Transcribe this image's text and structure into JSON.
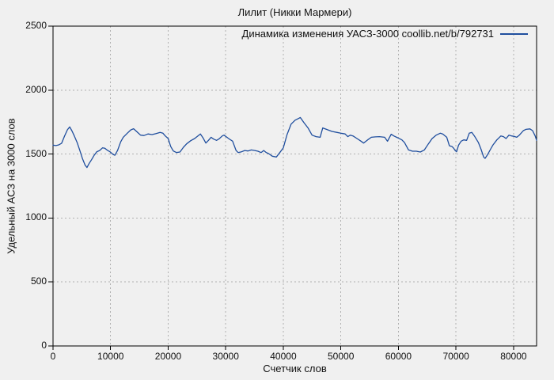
{
  "title": "Лилит (Никки Мармери)",
  "legend": {
    "label": "Динамика изменения УАСЗ-3000 coollib.net/b/792731"
  },
  "axes": {
    "xlabel": "Счетчик слов",
    "ylabel": "Удельный АСЗ на 3000 слов",
    "x_ticks": [
      0,
      10000,
      20000,
      30000,
      40000,
      50000,
      60000,
      70000,
      80000
    ],
    "y_ticks": [
      0,
      500,
      1000,
      1500,
      2000,
      2500
    ]
  },
  "colors": {
    "background": "#f0f0f0",
    "axis": "#000000",
    "grid": "#b0b0b0",
    "text": "#111111",
    "line": "#1f4e9e"
  },
  "chart_data": {
    "type": "line",
    "title": "Лилит (Никки Мармери)",
    "xlabel": "Счетчик слов",
    "ylabel": "Удельный АСЗ на 3000 слов",
    "xlim": [
      0,
      84000
    ],
    "ylim": [
      0,
      2500
    ],
    "grid": true,
    "legend_position": "top-right",
    "series": [
      {
        "name": "Динамика изменения УАСЗ-3000 coollib.net/b/792731",
        "color": "#1f4e9e",
        "points": [
          [
            0,
            1570
          ],
          [
            500,
            1566
          ],
          [
            1000,
            1572
          ],
          [
            1500,
            1585
          ],
          [
            2000,
            1640
          ],
          [
            2500,
            1690
          ],
          [
            2900,
            1712
          ],
          [
            3300,
            1680
          ],
          [
            3700,
            1642
          ],
          [
            4200,
            1590
          ],
          [
            4650,
            1530
          ],
          [
            5100,
            1466
          ],
          [
            5550,
            1415
          ],
          [
            5900,
            1395
          ],
          [
            6250,
            1425
          ],
          [
            6700,
            1456
          ],
          [
            7150,
            1491
          ],
          [
            7600,
            1518
          ],
          [
            8100,
            1528
          ],
          [
            8600,
            1549
          ],
          [
            9000,
            1545
          ],
          [
            9500,
            1528
          ],
          [
            9900,
            1518
          ],
          [
            10450,
            1497
          ],
          [
            10750,
            1491
          ],
          [
            11200,
            1528
          ],
          [
            11750,
            1595
          ],
          [
            12200,
            1631
          ],
          [
            12900,
            1663
          ],
          [
            13500,
            1689
          ],
          [
            14000,
            1698
          ],
          [
            14600,
            1673
          ],
          [
            15200,
            1648
          ],
          [
            15800,
            1645
          ],
          [
            16500,
            1657
          ],
          [
            17200,
            1652
          ],
          [
            17900,
            1660
          ],
          [
            18600,
            1669
          ],
          [
            19100,
            1663
          ],
          [
            19500,
            1642
          ],
          [
            20000,
            1621
          ],
          [
            20450,
            1559
          ],
          [
            20900,
            1524
          ],
          [
            21450,
            1512
          ],
          [
            22050,
            1516
          ],
          [
            22650,
            1553
          ],
          [
            23200,
            1580
          ],
          [
            23900,
            1604
          ],
          [
            24600,
            1621
          ],
          [
            25300,
            1646
          ],
          [
            25600,
            1657
          ],
          [
            26050,
            1627
          ],
          [
            26550,
            1586
          ],
          [
            27000,
            1607
          ],
          [
            27450,
            1631
          ],
          [
            27900,
            1617
          ],
          [
            28400,
            1607
          ],
          [
            28850,
            1619
          ],
          [
            29400,
            1642
          ],
          [
            29700,
            1648
          ],
          [
            30200,
            1631
          ],
          [
            30700,
            1615
          ],
          [
            31200,
            1601
          ],
          [
            31800,
            1528
          ],
          [
            32150,
            1512
          ],
          [
            32750,
            1518
          ],
          [
            33300,
            1528
          ],
          [
            33850,
            1524
          ],
          [
            34450,
            1532
          ],
          [
            35050,
            1528
          ],
          [
            35600,
            1522
          ],
          [
            36150,
            1512
          ],
          [
            36600,
            1528
          ],
          [
            37050,
            1512
          ],
          [
            37450,
            1504
          ],
          [
            38100,
            1483
          ],
          [
            38800,
            1477
          ],
          [
            39500,
            1518
          ],
          [
            40000,
            1549
          ],
          [
            40650,
            1652
          ],
          [
            41350,
            1734
          ],
          [
            42050,
            1765
          ],
          [
            42700,
            1780
          ],
          [
            42950,
            1786
          ],
          [
            43600,
            1745
          ],
          [
            44300,
            1704
          ],
          [
            45000,
            1648
          ],
          [
            45700,
            1636
          ],
          [
            46400,
            1631
          ],
          [
            46850,
            1704
          ],
          [
            47500,
            1693
          ],
          [
            48450,
            1677
          ],
          [
            49350,
            1669
          ],
          [
            50000,
            1663
          ],
          [
            50750,
            1657
          ],
          [
            51200,
            1636
          ],
          [
            51650,
            1648
          ],
          [
            52100,
            1642
          ],
          [
            52800,
            1621
          ],
          [
            53500,
            1601
          ],
          [
            53950,
            1586
          ],
          [
            54650,
            1611
          ],
          [
            55300,
            1631
          ],
          [
            56000,
            1634
          ],
          [
            56700,
            1636
          ],
          [
            57600,
            1631
          ],
          [
            58100,
            1600
          ],
          [
            58750,
            1655
          ],
          [
            59200,
            1642
          ],
          [
            59900,
            1627
          ],
          [
            60600,
            1611
          ],
          [
            61050,
            1590
          ],
          [
            61750,
            1532
          ],
          [
            62450,
            1522
          ],
          [
            63100,
            1522
          ],
          [
            63800,
            1516
          ],
          [
            64500,
            1532
          ],
          [
            65200,
            1580
          ],
          [
            65850,
            1621
          ],
          [
            66550,
            1648
          ],
          [
            67250,
            1663
          ],
          [
            67700,
            1657
          ],
          [
            68400,
            1631
          ],
          [
            68850,
            1565
          ],
          [
            69300,
            1559
          ],
          [
            69600,
            1545
          ],
          [
            69850,
            1528
          ],
          [
            70100,
            1518
          ],
          [
            70450,
            1569
          ],
          [
            70900,
            1601
          ],
          [
            71350,
            1611
          ],
          [
            71850,
            1607
          ],
          [
            72300,
            1663
          ],
          [
            72750,
            1669
          ],
          [
            73200,
            1642
          ],
          [
            73900,
            1590
          ],
          [
            74350,
            1538
          ],
          [
            74800,
            1477
          ],
          [
            75050,
            1466
          ],
          [
            75500,
            1497
          ],
          [
            76000,
            1538
          ],
          [
            76400,
            1569
          ],
          [
            77100,
            1611
          ],
          [
            77800,
            1642
          ],
          [
            78250,
            1636
          ],
          [
            78700,
            1621
          ],
          [
            79200,
            1648
          ],
          [
            79650,
            1642
          ],
          [
            80100,
            1638
          ],
          [
            80550,
            1631
          ],
          [
            81000,
            1648
          ],
          [
            81700,
            1683
          ],
          [
            82150,
            1693
          ],
          [
            82850,
            1697
          ],
          [
            83300,
            1683
          ],
          [
            83750,
            1642
          ],
          [
            84000,
            1607
          ]
        ]
      }
    ]
  }
}
